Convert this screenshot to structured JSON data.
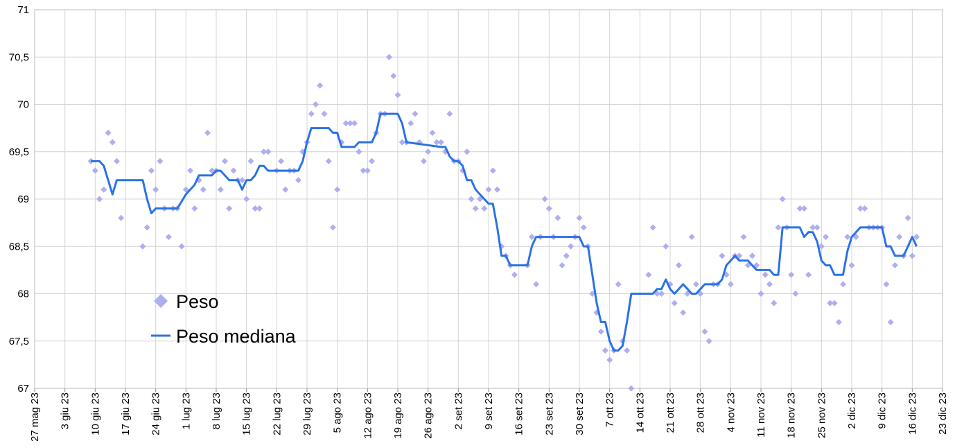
{
  "chart_data": {
    "type": "scatter",
    "xlim": [
      "2023-05-27",
      "2023-12-23"
    ],
    "xticks": [
      {
        "value": "2023-05-27",
        "label": "27 mag 23"
      },
      {
        "value": "2023-06-03",
        "label": "3 giu 23"
      },
      {
        "value": "2023-06-10",
        "label": "10 giu 23"
      },
      {
        "value": "2023-06-17",
        "label": "17 giu 23"
      },
      {
        "value": "2023-06-24",
        "label": "24 giu 23"
      },
      {
        "value": "2023-07-01",
        "label": "1 lug 23"
      },
      {
        "value": "2023-07-08",
        "label": "8 lug 23"
      },
      {
        "value": "2023-07-15",
        "label": "15 lug 23"
      },
      {
        "value": "2023-07-22",
        "label": "22 lug 23"
      },
      {
        "value": "2023-07-29",
        "label": "29 lug 23"
      },
      {
        "value": "2023-08-05",
        "label": "5 ago 23"
      },
      {
        "value": "2023-08-12",
        "label": "12 ago 23"
      },
      {
        "value": "2023-08-19",
        "label": "19 ago 23"
      },
      {
        "value": "2023-08-26",
        "label": "26 ago 23"
      },
      {
        "value": "2023-09-02",
        "label": "2 set 23"
      },
      {
        "value": "2023-09-09",
        "label": "9 set 23"
      },
      {
        "value": "2023-09-16",
        "label": "16 set 23"
      },
      {
        "value": "2023-09-23",
        "label": "23 set 23"
      },
      {
        "value": "2023-09-30",
        "label": "30 set 23"
      },
      {
        "value": "2023-10-07",
        "label": "7 ott 23"
      },
      {
        "value": "2023-10-14",
        "label": "14 ott 23"
      },
      {
        "value": "2023-10-21",
        "label": "21 ott 23"
      },
      {
        "value": "2023-10-28",
        "label": "28 ott 23"
      },
      {
        "value": "2023-11-04",
        "label": "4 nov 23"
      },
      {
        "value": "2023-11-11",
        "label": "11 nov 23"
      },
      {
        "value": "2023-11-18",
        "label": "18 nov 23"
      },
      {
        "value": "2023-11-25",
        "label": "25 nov 23"
      },
      {
        "value": "2023-12-02",
        "label": "2 dic 23"
      },
      {
        "value": "2023-12-09",
        "label": "9 dic 23"
      },
      {
        "value": "2023-12-16",
        "label": "16 dic 23"
      },
      {
        "value": "2023-12-23",
        "label": "23 dic 23"
      }
    ],
    "ylim": [
      67,
      71
    ],
    "yticks": [
      67,
      {
        "value": 67.5,
        "label": "67,5"
      },
      68,
      {
        "value": 68.5,
        "label": "68,5"
      },
      69,
      {
        "value": 69.5,
        "label": "69,5"
      },
      70,
      {
        "value": 70.5,
        "label": "70,5"
      },
      71
    ],
    "grid": true,
    "legend": "left",
    "series": [
      {
        "name": "Peso",
        "type": "scatter",
        "color": "#aeaef0",
        "x": [
          "2023-06-09",
          "2023-06-10",
          "2023-06-11",
          "2023-06-12",
          "2023-06-13",
          "2023-06-14",
          "2023-06-15",
          "2023-06-16",
          "2023-06-21",
          "2023-06-22",
          "2023-06-23",
          "2023-06-24",
          "2023-06-25",
          "2023-06-26",
          "2023-06-27",
          "2023-06-28",
          "2023-06-29",
          "2023-06-30",
          "2023-07-01",
          "2023-07-02",
          "2023-07-03",
          "2023-07-04",
          "2023-07-05",
          "2023-07-06",
          "2023-07-07",
          "2023-07-08",
          "2023-07-09",
          "2023-07-10",
          "2023-07-11",
          "2023-07-12",
          "2023-07-13",
          "2023-07-14",
          "2023-07-15",
          "2023-07-16",
          "2023-07-17",
          "2023-07-18",
          "2023-07-19",
          "2023-07-20",
          "2023-07-22",
          "2023-07-23",
          "2023-07-24",
          "2023-07-25",
          "2023-07-26",
          "2023-07-27",
          "2023-07-28",
          "2023-07-29",
          "2023-07-30",
          "2023-07-31",
          "2023-08-01",
          "2023-08-02",
          "2023-08-03",
          "2023-08-04",
          "2023-08-05",
          "2023-08-06",
          "2023-08-07",
          "2023-08-08",
          "2023-08-09",
          "2023-08-10",
          "2023-08-11",
          "2023-08-12",
          "2023-08-13",
          "2023-08-14",
          "2023-08-15",
          "2023-08-16",
          "2023-08-17",
          "2023-08-18",
          "2023-08-19",
          "2023-08-20",
          "2023-08-21",
          "2023-08-22",
          "2023-08-23",
          "2023-08-24",
          "2023-08-25",
          "2023-08-26",
          "2023-08-27",
          "2023-08-28",
          "2023-08-29",
          "2023-08-30",
          "2023-08-31",
          "2023-09-01",
          "2023-09-02",
          "2023-09-03",
          "2023-09-04",
          "2023-09-05",
          "2023-09-06",
          "2023-09-07",
          "2023-09-08",
          "2023-09-09",
          "2023-09-10",
          "2023-09-11",
          "2023-09-12",
          "2023-09-13",
          "2023-09-14",
          "2023-09-15",
          "2023-09-18",
          "2023-09-19",
          "2023-09-20",
          "2023-09-21",
          "2023-09-22",
          "2023-09-23",
          "2023-09-24",
          "2023-09-25",
          "2023-09-26",
          "2023-09-27",
          "2023-09-28",
          "2023-09-29",
          "2023-09-30",
          "2023-10-01",
          "2023-10-02",
          "2023-10-03",
          "2023-10-04",
          "2023-10-05",
          "2023-10-06",
          "2023-10-07",
          "2023-10-08",
          "2023-10-09",
          "2023-10-10",
          "2023-10-11",
          "2023-10-12",
          "2023-10-16",
          "2023-10-17",
          "2023-10-18",
          "2023-10-19",
          "2023-10-20",
          "2023-10-21",
          "2023-10-22",
          "2023-10-23",
          "2023-10-24",
          "2023-10-25",
          "2023-10-26",
          "2023-10-27",
          "2023-10-28",
          "2023-10-29",
          "2023-10-30",
          "2023-10-31",
          "2023-11-01",
          "2023-11-02",
          "2023-11-03",
          "2023-11-04",
          "2023-11-05",
          "2023-11-06",
          "2023-11-07",
          "2023-11-08",
          "2023-11-09",
          "2023-11-10",
          "2023-11-11",
          "2023-11-12",
          "2023-11-13",
          "2023-11-14",
          "2023-11-15",
          "2023-11-16",
          "2023-11-17",
          "2023-11-18",
          "2023-11-19",
          "2023-11-20",
          "2023-11-21",
          "2023-11-22",
          "2023-11-23",
          "2023-11-24",
          "2023-11-25",
          "2023-11-26",
          "2023-11-27",
          "2023-11-28",
          "2023-11-29",
          "2023-11-30",
          "2023-12-01",
          "2023-12-02",
          "2023-12-03",
          "2023-12-04",
          "2023-12-05",
          "2023-12-06",
          "2023-12-07",
          "2023-12-08",
          "2023-12-09",
          "2023-12-10",
          "2023-12-11",
          "2023-12-12",
          "2023-12-13",
          "2023-12-14",
          "2023-12-15",
          "2023-12-16",
          "2023-12-17"
        ],
        "values": [
          69.4,
          69.3,
          69.0,
          69.1,
          69.7,
          69.6,
          69.4,
          68.8,
          68.5,
          68.7,
          69.3,
          69.1,
          69.4,
          68.9,
          68.6,
          68.9,
          68.9,
          68.5,
          69.1,
          69.3,
          68.9,
          69.2,
          69.1,
          69.7,
          69.3,
          69.3,
          69.1,
          69.4,
          68.9,
          69.3,
          69.2,
          69.2,
          69.0,
          69.4,
          68.9,
          68.9,
          69.5,
          69.5,
          69.3,
          69.4,
          69.1,
          69.3,
          69.3,
          69.2,
          69.5,
          69.6,
          69.9,
          70.0,
          70.2,
          69.9,
          69.4,
          68.7,
          69.1,
          69.6,
          69.8,
          69.8,
          69.8,
          69.5,
          69.3,
          69.3,
          69.4,
          69.7,
          69.9,
          69.9,
          70.5,
          70.3,
          70.1,
          69.6,
          69.6,
          69.8,
          69.9,
          69.6,
          69.4,
          69.5,
          69.7,
          69.6,
          69.6,
          69.5,
          69.9,
          69.4,
          69.4,
          69.3,
          69.5,
          69.0,
          68.9,
          69.0,
          68.9,
          69.1,
          69.3,
          69.1,
          68.5,
          68.4,
          68.3,
          68.2,
          68.3,
          68.6,
          68.1,
          68.6,
          69.0,
          68.9,
          68.6,
          68.8,
          68.3,
          68.4,
          68.5,
          68.6,
          68.8,
          68.7,
          68.5,
          68.0,
          67.8,
          67.6,
          67.4,
          67.3,
          67.4,
          68.1,
          67.5,
          67.4,
          67.0,
          68.2,
          68.7,
          68.0,
          68.0,
          68.5,
          68.1,
          67.9,
          68.3,
          67.8,
          68.0,
          68.6,
          68.1,
          68.0,
          67.6,
          67.5,
          68.1,
          68.1,
          68.4,
          68.2,
          68.1,
          68.4,
          68.4,
          68.6,
          68.3,
          68.4,
          68.3,
          68.0,
          68.2,
          68.1,
          67.9,
          68.7,
          69.0,
          68.7,
          68.2,
          68.0,
          68.9,
          68.9,
          68.2,
          68.7,
          68.7,
          68.5,
          68.6,
          67.9,
          67.9,
          67.7,
          68.1,
          68.6,
          68.3,
          68.6,
          68.9,
          68.9,
          68.7,
          68.7,
          68.7,
          68.7,
          68.1,
          67.7,
          68.3,
          68.6,
          68.4,
          68.8,
          68.4,
          68.6
        ]
      },
      {
        "name": "Peso mediana",
        "type": "line",
        "color": "#2a72e6",
        "x": [
          "2023-06-09",
          "2023-06-11",
          "2023-06-12",
          "2023-06-14",
          "2023-06-15",
          "2023-06-21",
          "2023-06-22",
          "2023-06-23",
          "2023-06-24",
          "2023-06-29",
          "2023-07-01",
          "2023-07-02",
          "2023-07-03",
          "2023-07-04",
          "2023-07-07",
          "2023-07-08",
          "2023-07-09",
          "2023-07-11",
          "2023-07-13",
          "2023-07-14",
          "2023-07-15",
          "2023-07-16",
          "2023-07-17",
          "2023-07-18",
          "2023-07-19",
          "2023-07-20",
          "2023-07-27",
          "2023-07-28",
          "2023-07-29",
          "2023-07-30",
          "2023-08-03",
          "2023-08-04",
          "2023-08-05",
          "2023-08-06",
          "2023-08-09",
          "2023-08-10",
          "2023-08-13",
          "2023-08-14",
          "2023-08-15",
          "2023-08-19",
          "2023-08-20",
          "2023-08-21",
          "2023-08-29",
          "2023-08-30",
          "2023-08-31",
          "2023-09-01",
          "2023-09-02",
          "2023-09-03",
          "2023-09-04",
          "2023-09-05",
          "2023-09-06",
          "2023-09-07",
          "2023-09-08",
          "2023-09-09",
          "2023-09-10",
          "2023-09-11",
          "2023-09-12",
          "2023-09-13",
          "2023-09-14",
          "2023-09-18",
          "2023-09-19",
          "2023-09-20",
          "2023-09-30",
          "2023-10-01",
          "2023-10-02",
          "2023-10-03",
          "2023-10-04",
          "2023-10-05",
          "2023-10-06",
          "2023-10-07",
          "2023-10-08",
          "2023-10-09",
          "2023-10-10",
          "2023-10-11",
          "2023-10-12",
          "2023-10-17",
          "2023-10-18",
          "2023-10-19",
          "2023-10-20",
          "2023-10-21",
          "2023-10-22",
          "2023-10-23",
          "2023-10-24",
          "2023-10-25",
          "2023-10-26",
          "2023-10-27",
          "2023-10-28",
          "2023-10-29",
          "2023-11-01",
          "2023-11-02",
          "2023-11-03",
          "2023-11-04",
          "2023-11-05",
          "2023-11-06",
          "2023-11-08",
          "2023-11-09",
          "2023-11-10",
          "2023-11-13",
          "2023-11-14",
          "2023-11-15",
          "2023-11-16",
          "2023-11-20",
          "2023-11-21",
          "2023-11-22",
          "2023-11-23",
          "2023-11-24",
          "2023-11-25",
          "2023-11-26",
          "2023-11-27",
          "2023-11-28",
          "2023-11-30",
          "2023-12-01",
          "2023-12-02",
          "2023-12-03",
          "2023-12-04",
          "2023-12-09",
          "2023-12-10",
          "2023-12-11",
          "2023-12-12",
          "2023-12-14",
          "2023-12-15",
          "2023-12-16",
          "2023-12-17"
        ],
        "values": [
          69.4,
          69.4,
          69.35,
          69.05,
          69.2,
          69.2,
          69.0,
          68.85,
          68.9,
          68.9,
          69.05,
          69.1,
          69.15,
          69.25,
          69.25,
          69.3,
          69.3,
          69.2,
          69.2,
          69.1,
          69.2,
          69.2,
          69.25,
          69.35,
          69.35,
          69.3,
          69.3,
          69.4,
          69.6,
          69.75,
          69.75,
          69.7,
          69.7,
          69.55,
          69.55,
          69.6,
          69.6,
          69.7,
          69.9,
          69.9,
          69.8,
          69.6,
          69.55,
          69.55,
          69.45,
          69.4,
          69.4,
          69.35,
          69.2,
          69.2,
          69.1,
          69.05,
          69.0,
          68.95,
          68.95,
          68.7,
          68.4,
          68.4,
          68.3,
          68.3,
          68.5,
          68.6,
          68.6,
          68.5,
          68.5,
          68.2,
          67.9,
          67.7,
          67.7,
          67.5,
          67.4,
          67.4,
          67.45,
          67.7,
          68.0,
          68.0,
          68.05,
          68.05,
          68.15,
          68.05,
          68.0,
          68.05,
          68.1,
          68.05,
          68.0,
          68.0,
          68.05,
          68.1,
          68.1,
          68.15,
          68.3,
          68.35,
          68.4,
          68.35,
          68.35,
          68.3,
          68.25,
          68.25,
          68.2,
          68.2,
          68.7,
          68.7,
          68.6,
          68.65,
          68.65,
          68.55,
          68.35,
          68.3,
          68.3,
          68.2,
          68.2,
          68.45,
          68.6,
          68.65,
          68.7,
          68.7,
          68.5,
          68.5,
          68.4,
          68.4,
          68.5,
          68.6,
          68.5
        ]
      }
    ]
  }
}
